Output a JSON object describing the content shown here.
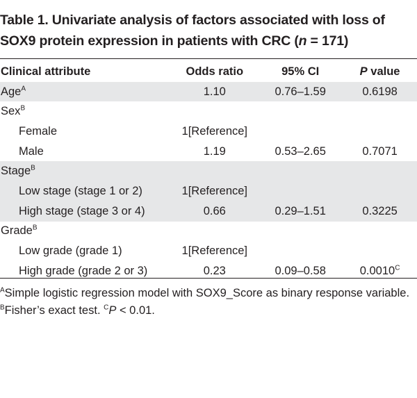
{
  "title": {
    "prefix": "Table 1. Univariate analysis of factors associated with loss of SOX9 protein expression in patients with CRC (",
    "n_italic": "n",
    "suffix": " = 171)"
  },
  "headers": {
    "attribute": "Clinical attribute",
    "odds_ratio": "Odds ratio",
    "ci": "95% CI",
    "p_italic": "P",
    "p_rest": " value"
  },
  "rows": [
    {
      "label": "Age",
      "sup": "A",
      "or": "1.10",
      "ci": "0.76–1.59",
      "p": "0.6198",
      "p_sup": ""
    },
    {
      "label": "Sex",
      "sup": "B",
      "or": "",
      "ci": "",
      "p": "",
      "p_sup": ""
    },
    {
      "label": "Female",
      "sup": "",
      "or": "1[Reference]",
      "ci": "",
      "p": "",
      "p_sup": ""
    },
    {
      "label": "Male",
      "sup": "",
      "or": "1.19",
      "ci": "0.53–2.65",
      "p": "0.7071",
      "p_sup": ""
    },
    {
      "label": "Stage",
      "sup": "B",
      "or": "",
      "ci": "",
      "p": "",
      "p_sup": ""
    },
    {
      "label": "Low stage (stage 1 or 2)",
      "sup": "",
      "or": "1[Reference]",
      "ci": "",
      "p": "",
      "p_sup": ""
    },
    {
      "label": "High stage (stage 3 or 4)",
      "sup": "",
      "or": "0.66",
      "ci": "0.29–1.51",
      "p": "0.3225",
      "p_sup": ""
    },
    {
      "label": "Grade",
      "sup": "B",
      "or": "",
      "ci": "",
      "p": "",
      "p_sup": ""
    },
    {
      "label": "Low grade (grade 1)",
      "sup": "",
      "or": "1[Reference]",
      "ci": "",
      "p": "",
      "p_sup": ""
    },
    {
      "label": "High grade (grade 2 or 3)",
      "sup": "",
      "or": "0.23",
      "ci": "0.09–0.58",
      "p": "0.0010",
      "p_sup": "C"
    }
  ],
  "footnotes": {
    "a_mark": "A",
    "a_text": "Simple logistic regression model with SOX9_Score as binary response variable. ",
    "b_mark": "B",
    "b_text": "Fisher’s exact test. ",
    "c_mark": "C",
    "c_p": "P",
    "c_text": " < 0.01."
  },
  "colors": {
    "shade": "#e6e7e8",
    "rule": "#231f20",
    "text": "#231f20"
  }
}
